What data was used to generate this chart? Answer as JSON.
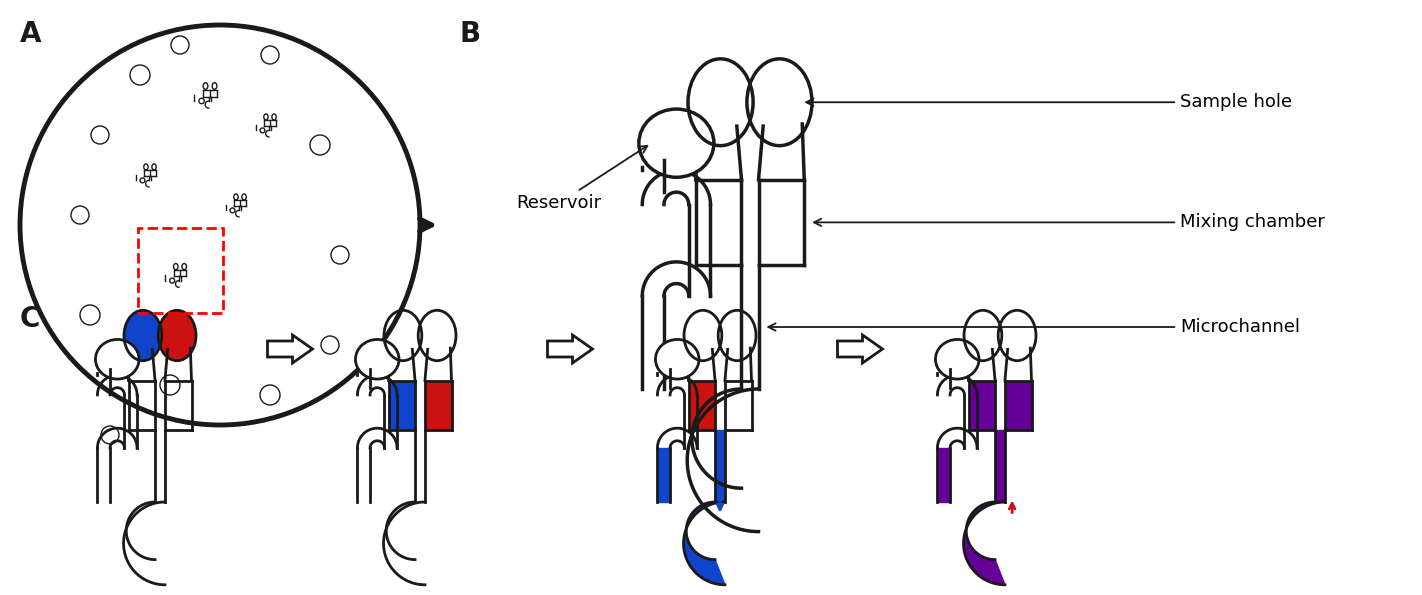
{
  "bg_color": "#ffffff",
  "line_color": "#1a1a1a",
  "lw_main": 2.2,
  "lw_thick": 3.5,
  "lw_mini": 1.0,
  "label_fontsize": 20,
  "annot_fontsize": 13,
  "label_A": "A",
  "label_B": "B",
  "label_C": "C",
  "annotations_B": [
    "Sample hole",
    "Mixing chamber",
    "Microchannel"
  ],
  "reservoir_label": "Reservoir",
  "blue_color": "#1144cc",
  "red_color": "#cc1111",
  "purple_color": "#660099",
  "arrow_color": "#111111"
}
